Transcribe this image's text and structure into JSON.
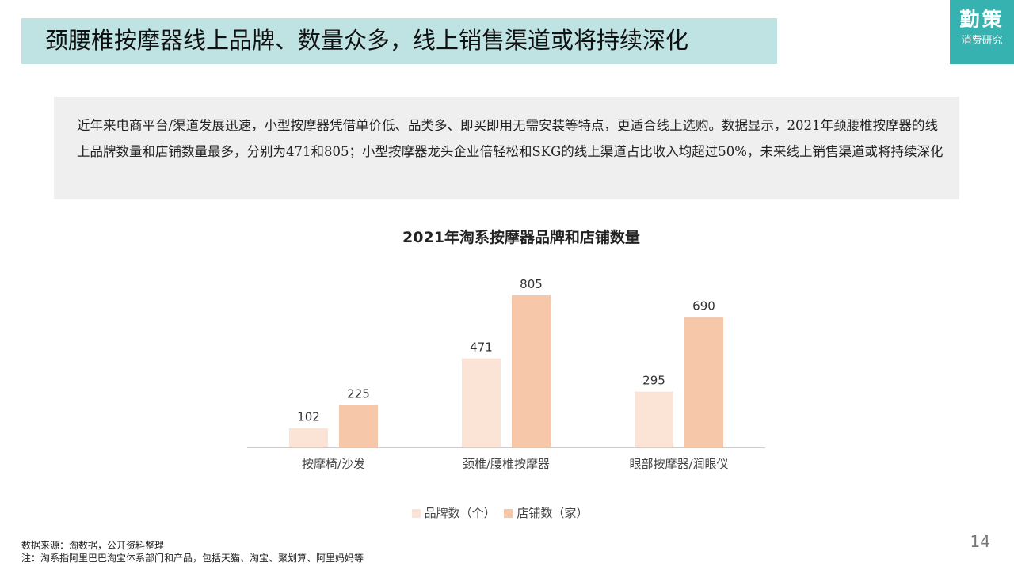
{
  "slide": {
    "title": "颈腰椎按摩器线上品牌、数量众多，线上销售渠道或将持续深化",
    "logo_main": "勤策",
    "logo_sub": "消费研究",
    "summary": "近年来电商平台/渠道发展迅速，小型按摩器凭借单价低、品类多、即买即用无需安装等特点，更适合线上选购。数据显示，2021年颈腰椎按摩器的线上品牌数量和店铺数量最多，分别为471和805；小型按摩器龙头企业倍轻松和SKG的线上渠道占比收入均超过50%，未来线上销售渠道或将持续深化",
    "source": "数据来源：淘数据，公开资料整理",
    "note": "注：淘系指阿里巴巴淘宝体系部门和产品，包括天猫、淘宝、聚划算、阿里妈妈等",
    "page_number": "14"
  },
  "chart_data": {
    "type": "bar",
    "title": "2021年淘系按摩器品牌和店铺数量",
    "categories": [
      "按摩椅/沙发",
      "颈椎/腰椎按摩器",
      "眼部按摩器/润眼仪"
    ],
    "series": [
      {
        "name": "品牌数（个）",
        "values": [
          102,
          471,
          295
        ],
        "color": "#fbe3d5"
      },
      {
        "name": "店铺数（家）",
        "values": [
          225,
          805,
          690
        ],
        "color": "#f7c7aa"
      }
    ],
    "ylim": [
      0,
      805
    ],
    "grid": false,
    "legend_position": "bottom"
  },
  "colors": {
    "title_bg": "#bfe3e3",
    "logo_bg": "#36b3b0",
    "summary_bg": "#efefef",
    "axis": "#cccccc"
  }
}
